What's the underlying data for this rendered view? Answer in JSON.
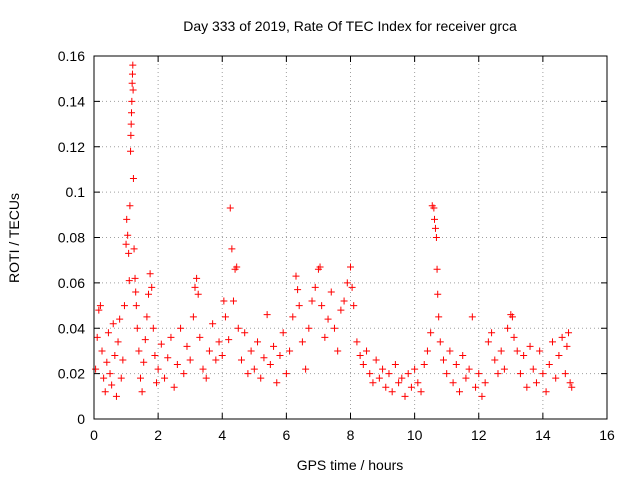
{
  "chart_data": {
    "type": "scatter",
    "title": "Day 333 of 2019, Rate Of TEC Index for receiver grca",
    "xlabel": "GPS time / hours",
    "ylabel": "ROTI / TECUs",
    "xlim": [
      0,
      16
    ],
    "ylim": [
      0,
      0.16
    ],
    "x_ticks": [
      0,
      2,
      4,
      6,
      8,
      10,
      12,
      14,
      16
    ],
    "x_tick_labels": [
      "0",
      "2",
      "4",
      "6",
      "8",
      "10",
      "12",
      "14",
      "16"
    ],
    "y_ticks": [
      0,
      0.02,
      0.04,
      0.06,
      0.08,
      0.1,
      0.12,
      0.14,
      0.16
    ],
    "y_tick_labels": [
      "0",
      "0.02",
      "0.04",
      "0.06",
      "0.08",
      "0.1",
      "0.12",
      "0.14",
      "0.16"
    ],
    "grid": true,
    "marker": "plus",
    "color": "#ff0000",
    "points": [
      [
        0.05,
        0.022
      ],
      [
        0.1,
        0.036
      ],
      [
        0.15,
        0.048
      ],
      [
        0.2,
        0.05
      ],
      [
        0.25,
        0.03
      ],
      [
        0.3,
        0.018
      ],
      [
        0.35,
        0.012
      ],
      [
        0.4,
        0.025
      ],
      [
        0.45,
        0.038
      ],
      [
        0.5,
        0.02
      ],
      [
        0.55,
        0.015
      ],
      [
        0.6,
        0.042
      ],
      [
        0.65,
        0.028
      ],
      [
        0.7,
        0.01
      ],
      [
        0.75,
        0.034
      ],
      [
        0.8,
        0.044
      ],
      [
        0.85,
        0.018
      ],
      [
        0.9,
        0.026
      ],
      [
        0.95,
        0.05
      ],
      [
        1.0,
        0.077
      ],
      [
        1.02,
        0.088
      ],
      [
        1.05,
        0.081
      ],
      [
        1.08,
        0.073
      ],
      [
        1.1,
        0.061
      ],
      [
        1.12,
        0.094
      ],
      [
        1.14,
        0.118
      ],
      [
        1.15,
        0.125
      ],
      [
        1.16,
        0.13
      ],
      [
        1.17,
        0.135
      ],
      [
        1.18,
        0.14
      ],
      [
        1.19,
        0.148
      ],
      [
        1.2,
        0.152
      ],
      [
        1.21,
        0.156
      ],
      [
        1.22,
        0.145
      ],
      [
        1.23,
        0.106
      ],
      [
        1.25,
        0.075
      ],
      [
        1.28,
        0.062
      ],
      [
        1.3,
        0.056
      ],
      [
        1.32,
        0.05
      ],
      [
        1.35,
        0.04
      ],
      [
        1.4,
        0.03
      ],
      [
        1.45,
        0.018
      ],
      [
        1.5,
        0.012
      ],
      [
        1.55,
        0.025
      ],
      [
        1.6,
        0.035
      ],
      [
        1.65,
        0.045
      ],
      [
        1.7,
        0.055
      ],
      [
        1.75,
        0.064
      ],
      [
        1.8,
        0.058
      ],
      [
        1.85,
        0.04
      ],
      [
        1.9,
        0.028
      ],
      [
        1.95,
        0.016
      ],
      [
        2.0,
        0.022
      ],
      [
        2.1,
        0.033
      ],
      [
        2.2,
        0.018
      ],
      [
        2.3,
        0.027
      ],
      [
        2.4,
        0.036
      ],
      [
        2.5,
        0.014
      ],
      [
        2.6,
        0.024
      ],
      [
        2.7,
        0.04
      ],
      [
        2.8,
        0.02
      ],
      [
        2.9,
        0.032
      ],
      [
        3.0,
        0.026
      ],
      [
        3.1,
        0.045
      ],
      [
        3.15,
        0.058
      ],
      [
        3.2,
        0.062
      ],
      [
        3.25,
        0.055
      ],
      [
        3.3,
        0.036
      ],
      [
        3.4,
        0.022
      ],
      [
        3.5,
        0.018
      ],
      [
        3.6,
        0.03
      ],
      [
        3.7,
        0.042
      ],
      [
        3.8,
        0.026
      ],
      [
        3.9,
        0.034
      ],
      [
        4.0,
        0.028
      ],
      [
        4.05,
        0.052
      ],
      [
        4.1,
        0.045
      ],
      [
        4.2,
        0.035
      ],
      [
        4.25,
        0.093
      ],
      [
        4.3,
        0.075
      ],
      [
        4.35,
        0.052
      ],
      [
        4.4,
        0.066
      ],
      [
        4.45,
        0.067
      ],
      [
        4.5,
        0.04
      ],
      [
        4.6,
        0.026
      ],
      [
        4.7,
        0.038
      ],
      [
        4.8,
        0.02
      ],
      [
        4.9,
        0.03
      ],
      [
        5.0,
        0.022
      ],
      [
        5.1,
        0.034
      ],
      [
        5.2,
        0.018
      ],
      [
        5.3,
        0.027
      ],
      [
        5.4,
        0.046
      ],
      [
        5.5,
        0.024
      ],
      [
        5.6,
        0.032
      ],
      [
        5.7,
        0.016
      ],
      [
        5.8,
        0.028
      ],
      [
        5.9,
        0.038
      ],
      [
        6.0,
        0.02
      ],
      [
        6.1,
        0.03
      ],
      [
        6.2,
        0.045
      ],
      [
        6.3,
        0.063
      ],
      [
        6.35,
        0.057
      ],
      [
        6.4,
        0.05
      ],
      [
        6.5,
        0.034
      ],
      [
        6.6,
        0.022
      ],
      [
        6.7,
        0.04
      ],
      [
        6.8,
        0.052
      ],
      [
        6.9,
        0.058
      ],
      [
        7.0,
        0.066
      ],
      [
        7.05,
        0.067
      ],
      [
        7.1,
        0.05
      ],
      [
        7.2,
        0.036
      ],
      [
        7.3,
        0.044
      ],
      [
        7.4,
        0.056
      ],
      [
        7.5,
        0.04
      ],
      [
        7.6,
        0.03
      ],
      [
        7.7,
        0.048
      ],
      [
        7.8,
        0.052
      ],
      [
        7.9,
        0.06
      ],
      [
        8.0,
        0.067
      ],
      [
        8.05,
        0.058
      ],
      [
        8.1,
        0.05
      ],
      [
        8.2,
        0.034
      ],
      [
        8.3,
        0.028
      ],
      [
        8.4,
        0.024
      ],
      [
        8.5,
        0.03
      ],
      [
        8.6,
        0.02
      ],
      [
        8.7,
        0.016
      ],
      [
        8.8,
        0.026
      ],
      [
        8.9,
        0.018
      ],
      [
        9.0,
        0.022
      ],
      [
        9.1,
        0.014
      ],
      [
        9.2,
        0.02
      ],
      [
        9.3,
        0.012
      ],
      [
        9.4,
        0.024
      ],
      [
        9.5,
        0.016
      ],
      [
        9.6,
        0.018
      ],
      [
        9.7,
        0.01
      ],
      [
        9.8,
        0.02
      ],
      [
        9.9,
        0.014
      ],
      [
        10.0,
        0.022
      ],
      [
        10.1,
        0.016
      ],
      [
        10.2,
        0.012
      ],
      [
        10.3,
        0.024
      ],
      [
        10.4,
        0.03
      ],
      [
        10.5,
        0.038
      ],
      [
        10.55,
        0.094
      ],
      [
        10.6,
        0.093
      ],
      [
        10.62,
        0.088
      ],
      [
        10.65,
        0.084
      ],
      [
        10.68,
        0.08
      ],
      [
        10.7,
        0.066
      ],
      [
        10.72,
        0.055
      ],
      [
        10.75,
        0.045
      ],
      [
        10.8,
        0.034
      ],
      [
        10.9,
        0.026
      ],
      [
        11.0,
        0.02
      ],
      [
        11.1,
        0.03
      ],
      [
        11.2,
        0.016
      ],
      [
        11.3,
        0.024
      ],
      [
        11.4,
        0.012
      ],
      [
        11.5,
        0.028
      ],
      [
        11.6,
        0.018
      ],
      [
        11.7,
        0.022
      ],
      [
        11.8,
        0.045
      ],
      [
        11.9,
        0.014
      ],
      [
        12.0,
        0.02
      ],
      [
        12.1,
        0.01
      ],
      [
        12.2,
        0.016
      ],
      [
        12.3,
        0.034
      ],
      [
        12.4,
        0.038
      ],
      [
        12.5,
        0.026
      ],
      [
        12.6,
        0.02
      ],
      [
        12.7,
        0.03
      ],
      [
        12.8,
        0.022
      ],
      [
        12.9,
        0.04
      ],
      [
        13.0,
        0.046
      ],
      [
        13.05,
        0.045
      ],
      [
        13.1,
        0.036
      ],
      [
        13.2,
        0.03
      ],
      [
        13.3,
        0.02
      ],
      [
        13.4,
        0.028
      ],
      [
        13.5,
        0.014
      ],
      [
        13.6,
        0.032
      ],
      [
        13.7,
        0.022
      ],
      [
        13.8,
        0.016
      ],
      [
        13.9,
        0.03
      ],
      [
        14.0,
        0.02
      ],
      [
        14.1,
        0.012
      ],
      [
        14.2,
        0.024
      ],
      [
        14.3,
        0.034
      ],
      [
        14.4,
        0.018
      ],
      [
        14.5,
        0.028
      ],
      [
        14.6,
        0.036
      ],
      [
        14.7,
        0.02
      ],
      [
        14.75,
        0.032
      ],
      [
        14.8,
        0.038
      ],
      [
        14.85,
        0.016
      ],
      [
        14.9,
        0.014
      ]
    ]
  }
}
